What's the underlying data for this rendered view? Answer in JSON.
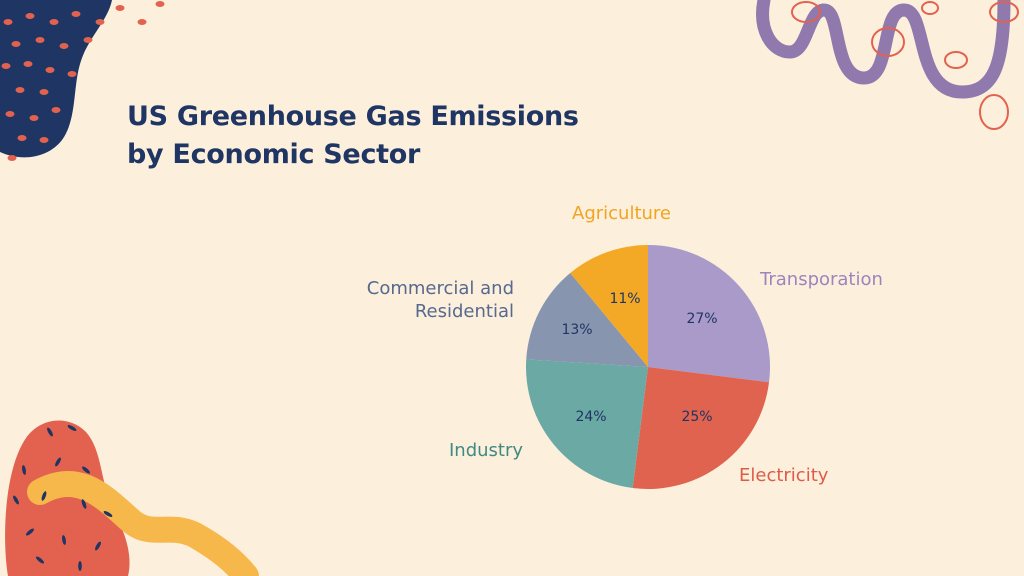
{
  "title_lines": [
    "US Greenhouse Gas Emissions",
    "by Economic Sector"
  ],
  "colors": {
    "background": "#fcefdc",
    "title": "#1f3563",
    "pct_text": "#1f3563",
    "blob_navy": "#1f3563",
    "blob_dot": "#e2624f",
    "blob_red": "#e2624f",
    "blob_yellow": "#f7b84b",
    "squiggle_purple": "#8f79ad",
    "ring_red": "#e2624f",
    "dash_navy": "#1f3563"
  },
  "chart_data": {
    "type": "pie",
    "title": "US Greenhouse Gas Emissions by Economic Sector",
    "start_angle_deg": 0,
    "direction": "clockwise",
    "unit": "%",
    "slices": [
      {
        "label": "Transporation",
        "value": 27,
        "pct_label": "27%",
        "color": "#a99ac9",
        "label_color": "#9a86bf"
      },
      {
        "label": "Electricity",
        "value": 25,
        "pct_label": "25%",
        "color": "#e0634f",
        "label_color": "#dc5c48"
      },
      {
        "label": "Industry",
        "value": 24,
        "pct_label": "24%",
        "color": "#6aa9a4",
        "label_color": "#3f8a84"
      },
      {
        "label": "Commercial and Residential",
        "label_lines": [
          "Commercial and",
          "Residential"
        ],
        "value": 13,
        "pct_label": "13%",
        "color": "#8895af",
        "label_color": "#56698e"
      },
      {
        "label": "Agriculture",
        "value": 11,
        "pct_label": "11%",
        "color": "#f4a926",
        "label_color": "#f1a421"
      }
    ]
  }
}
